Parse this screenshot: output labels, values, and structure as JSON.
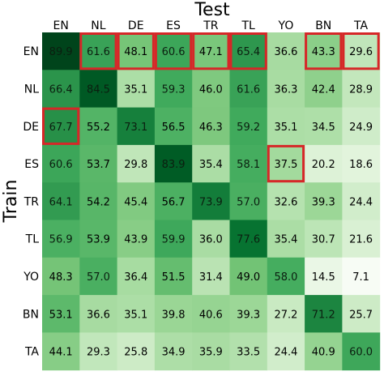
{
  "chart_data": {
    "type": "heatmap",
    "title": "",
    "xlabel": "Test",
    "ylabel": "Train",
    "x_categories": [
      "EN",
      "NL",
      "DE",
      "ES",
      "TR",
      "TL",
      "YO",
      "BN",
      "TA"
    ],
    "y_categories": [
      "EN",
      "NL",
      "DE",
      "ES",
      "TR",
      "TL",
      "YO",
      "BN",
      "TA"
    ],
    "values": [
      [
        89.9,
        61.6,
        48.1,
        60.6,
        47.1,
        65.4,
        36.6,
        43.3,
        29.6
      ],
      [
        66.4,
        84.5,
        35.1,
        59.3,
        46.0,
        61.6,
        36.3,
        42.4,
        28.9
      ],
      [
        67.7,
        55.2,
        73.1,
        56.5,
        46.3,
        59.2,
        35.1,
        34.5,
        24.9
      ],
      [
        60.6,
        53.7,
        29.8,
        83.9,
        35.4,
        58.1,
        37.5,
        20.2,
        18.6
      ],
      [
        64.1,
        54.2,
        45.4,
        56.7,
        73.9,
        57.0,
        32.6,
        39.3,
        24.4
      ],
      [
        56.9,
        53.9,
        43.9,
        59.9,
        36.0,
        77.6,
        35.4,
        30.7,
        21.6
      ],
      [
        48.3,
        57.0,
        36.4,
        51.5,
        31.4,
        49.0,
        58.0,
        14.5,
        7.1
      ],
      [
        53.1,
        36.6,
        35.1,
        39.8,
        40.6,
        39.3,
        27.2,
        71.2,
        25.7
      ],
      [
        44.1,
        29.3,
        25.8,
        34.9,
        35.9,
        33.5,
        24.4,
        40.9,
        60.0
      ]
    ],
    "colormap": "Greens",
    "color_range": [
      7.1,
      89.9
    ],
    "highlighted_cells": [
      [
        0,
        1
      ],
      [
        0,
        2
      ],
      [
        0,
        3
      ],
      [
        0,
        4
      ],
      [
        0,
        5
      ],
      [
        0,
        7
      ],
      [
        0,
        8
      ],
      [
        2,
        0
      ],
      [
        3,
        6
      ]
    ],
    "highlight_color": "#d62728",
    "grid": false,
    "colorbar": false
  }
}
